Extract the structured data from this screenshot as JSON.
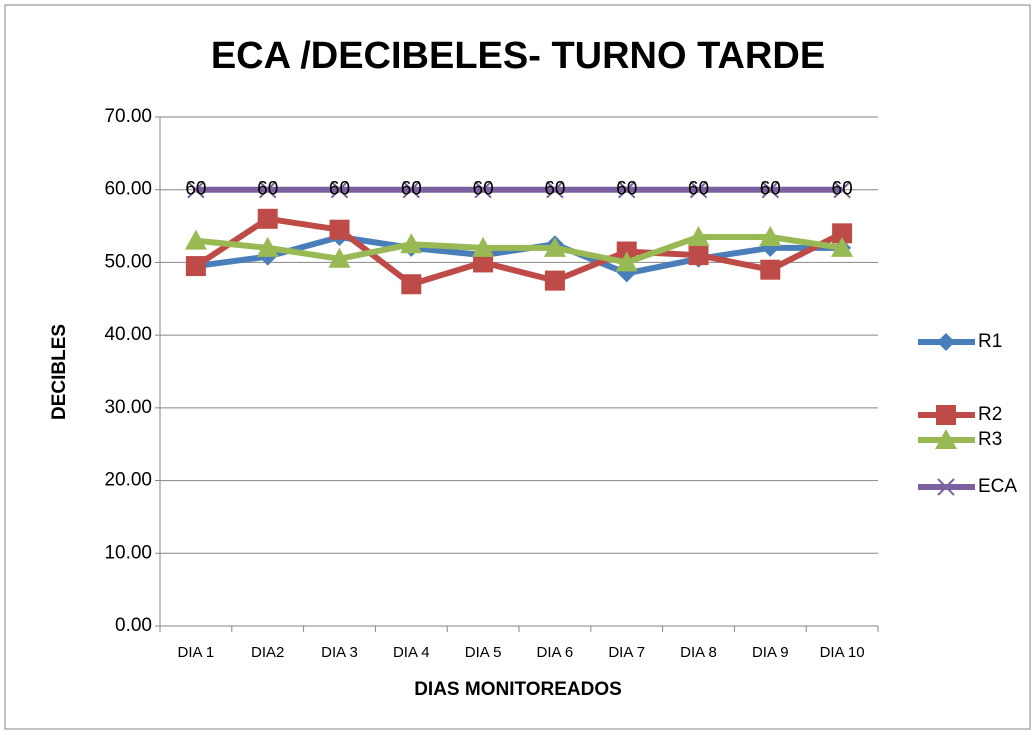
{
  "chart_data": {
    "type": "line",
    "title": "ECA /DECIBELES- TURNO TARDE",
    "x_label": "DIAS MONITOREADOS",
    "y_label": "DECIBLES",
    "categories": [
      "DIA 1",
      "DIA2",
      "DIA 3",
      "DIA 4",
      "DIA 5",
      "DIA 6",
      "DIA 7",
      "DIA 8",
      "DIA 9",
      "DIA 10"
    ],
    "series": [
      {
        "name": "R1",
        "color": "#4a7ebb",
        "marker": "diamond",
        "values": [
          49.5,
          50.8,
          53.5,
          52,
          51,
          52.5,
          48.5,
          50.5,
          52,
          52
        ]
      },
      {
        "name": "R2",
        "color": "#be4b48",
        "marker": "square",
        "values": [
          49.5,
          56,
          54.5,
          47,
          50,
          47.5,
          51.5,
          51,
          49,
          54
        ]
      },
      {
        "name": "R3",
        "color": "#98b954",
        "marker": "triangle",
        "values": [
          53,
          52,
          50.5,
          52.5,
          52,
          52,
          50,
          53.5,
          53.5,
          52
        ]
      },
      {
        "name": "ECA",
        "color": "#7d60a0",
        "marker": "x",
        "data_labels": true,
        "values": [
          60,
          60,
          60,
          60,
          60,
          60,
          60,
          60,
          60,
          60
        ]
      }
    ],
    "ylim": [
      0,
      70
    ],
    "yticks": [
      {
        "value": 0,
        "label": "0.00"
      },
      {
        "value": 10,
        "label": "10.00"
      },
      {
        "value": 20,
        "label": "20.00"
      },
      {
        "value": 30,
        "label": "30.00"
      },
      {
        "value": 40,
        "label": "40.00"
      },
      {
        "value": 50,
        "label": "50.00"
      },
      {
        "value": 60,
        "label": "60.00"
      },
      {
        "value": 70,
        "label": "70.00"
      }
    ],
    "grid": true,
    "legend": "right"
  }
}
